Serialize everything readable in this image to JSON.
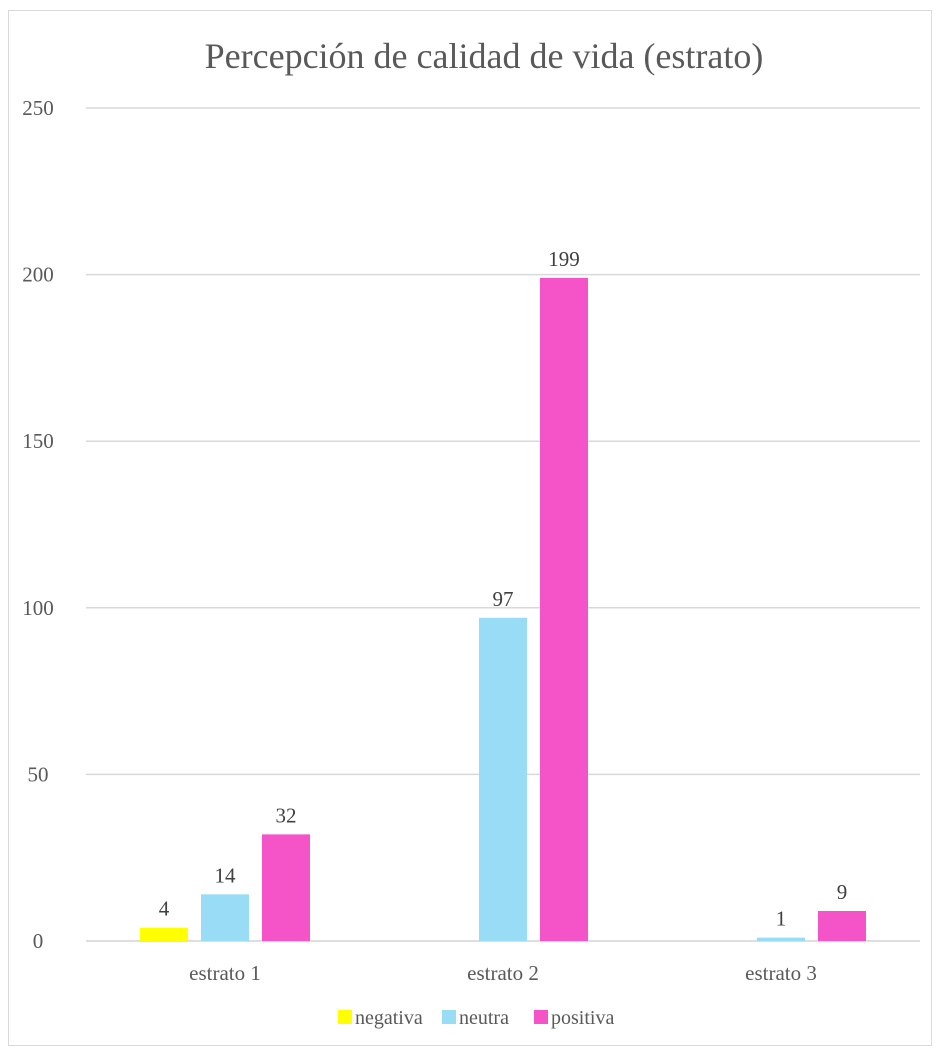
{
  "chart_data": {
    "type": "bar",
    "title": "Percepción de calidad de vida (estrato)",
    "categories": [
      "estrato 1",
      "estrato 2",
      "estrato 3"
    ],
    "series": [
      {
        "name": "negativa",
        "color": "#ffff00",
        "values": [
          4,
          null,
          null
        ]
      },
      {
        "name": "neutra",
        "color": "#99dcf6",
        "values": [
          14,
          97,
          1
        ]
      },
      {
        "name": "positiva",
        "color": "#f553c8",
        "values": [
          32,
          199,
          9
        ]
      }
    ],
    "yticks": [
      0,
      50,
      100,
      150,
      200,
      250
    ],
    "ylim": [
      0,
      250
    ],
    "grid": true,
    "legend_position": "bottom"
  }
}
